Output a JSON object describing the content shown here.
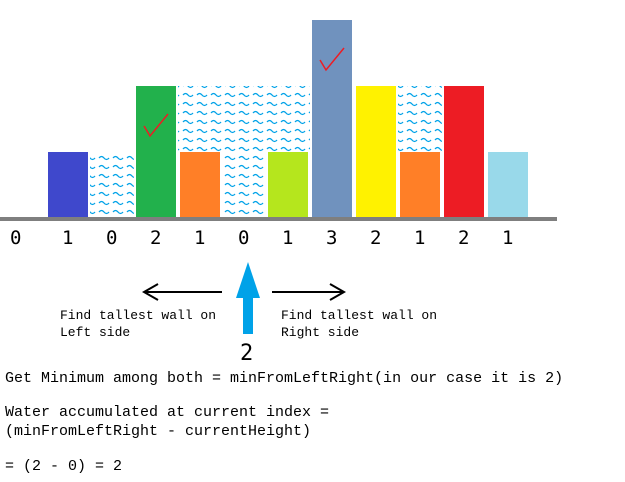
{
  "heights": [
    "0",
    "1",
    "0",
    "2",
    "1",
    "0",
    "1",
    "3",
    "2",
    "1",
    "2",
    "1"
  ],
  "bars": [
    {
      "index": 1,
      "height": 1,
      "color": "#3f48cc"
    },
    {
      "index": 3,
      "height": 2,
      "color": "#22b14c"
    },
    {
      "index": 4,
      "height": 1,
      "color": "#ff7f27"
    },
    {
      "index": 6,
      "height": 1,
      "color": "#b5e61d"
    },
    {
      "index": 7,
      "height": 3,
      "color": "#7092be"
    },
    {
      "index": 8,
      "height": 2,
      "color": "#fff200"
    },
    {
      "index": 9,
      "height": 1,
      "color": "#ff7f27"
    },
    {
      "index": 10,
      "height": 2,
      "color": "#ed1c24"
    },
    {
      "index": 11,
      "height": 1,
      "color": "#99d9ea"
    }
  ],
  "water": [
    {
      "index": 2,
      "from": 0,
      "to": 1
    },
    {
      "index": 4,
      "from": 1,
      "to": 2
    },
    {
      "index": 5,
      "from": 0,
      "to": 2
    },
    {
      "index": 6,
      "from": 1,
      "to": 2
    },
    {
      "index": 9,
      "from": 1,
      "to": 2
    }
  ],
  "checkmarks": [
    3,
    7
  ],
  "colors": {
    "water": "#00a2e8",
    "ground": "#7f7f7f",
    "arrow_up": "#00a2e8",
    "check": "#ed1c24"
  },
  "annotations": {
    "left_line1": "Find tallest wall on",
    "left_line2": "Left side",
    "right_line1": "Find tallest wall on",
    "right_line2": "Right side",
    "current_value": "2"
  },
  "formula": {
    "line1": "Get Minimum among both = minFromLeftRight(in our case it is 2)",
    "line2": "Water accumulated at current index =",
    "line3": "(minFromLeftRight - currentHeight)",
    "line4": "= (2 - 0) = 2"
  }
}
